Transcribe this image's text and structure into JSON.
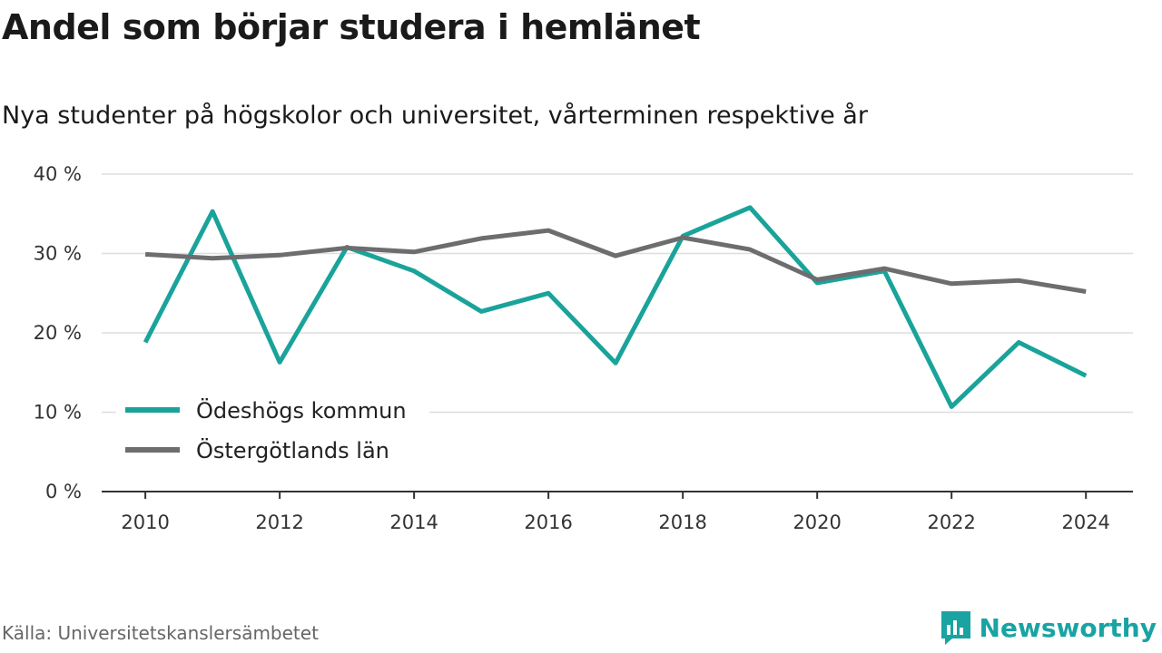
{
  "title": "Andel som börjar studera i hemlänet",
  "subtitle": "Nya studenter på högskolor och universitet, vårterminen respektive år",
  "source": "Källa: Universitetskanslersämbetet",
  "brand": {
    "name": "Newsworthy",
    "icon": "newsworthy-logo-icon",
    "color": "#1aa3a3"
  },
  "chart_data": {
    "type": "line",
    "title": "Andel som börjar studera i hemlänet",
    "subtitle": "Nya studenter på högskolor och universitet, vårterminen respektive år",
    "x": [
      2010,
      2011,
      2012,
      2013,
      2014,
      2015,
      2016,
      2017,
      2018,
      2019,
      2020,
      2021,
      2022,
      2023,
      2024
    ],
    "x_ticks": [
      2010,
      2012,
      2014,
      2016,
      2018,
      2020,
      2022,
      2024
    ],
    "x_tick_labels": [
      "2010",
      "2012",
      "2014",
      "2016",
      "2018",
      "2020",
      "2022",
      "2024"
    ],
    "y_ticks": [
      0,
      10,
      20,
      30,
      40
    ],
    "y_tick_labels": [
      "0 %",
      "10 %",
      "20 %",
      "30 %",
      "40 %"
    ],
    "ylim": [
      0,
      40
    ],
    "xlim": [
      2009.35,
      2024.7
    ],
    "grid": "horizontal",
    "legend_position": "bottom-left",
    "series": [
      {
        "name": "Ödeshögs kommun",
        "color": "#1aa39a",
        "values": [
          18.8,
          35.3,
          16.3,
          30.8,
          27.8,
          22.7,
          25.0,
          16.2,
          32.2,
          35.8,
          26.3,
          27.8,
          10.7,
          18.8,
          14.6
        ]
      },
      {
        "name": "Östergötlands län",
        "color": "#6d6d70",
        "values": [
          29.9,
          29.4,
          29.8,
          30.7,
          30.2,
          31.9,
          32.9,
          29.7,
          32.0,
          30.5,
          26.7,
          28.1,
          26.2,
          26.6,
          25.2
        ]
      }
    ]
  }
}
